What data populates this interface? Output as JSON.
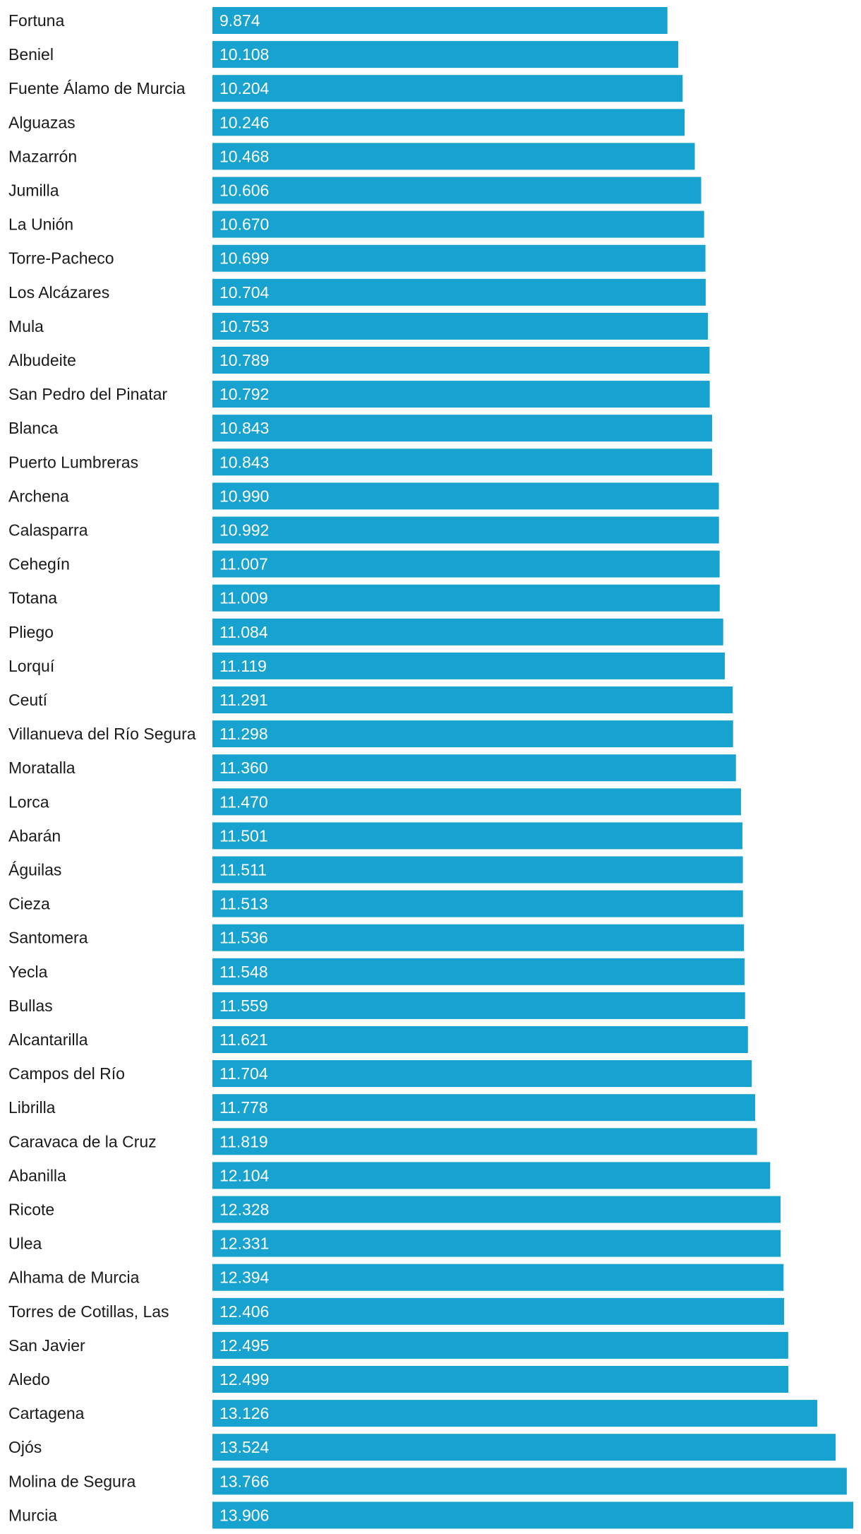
{
  "chart_data": {
    "type": "bar",
    "orientation": "horizontal",
    "title": "",
    "xlabel": "",
    "ylabel": "",
    "bar_color": "#17a2cf",
    "xlim": [
      0,
      13.906
    ],
    "categories": [
      "Fortuna",
      "Beniel",
      "Fuente Álamo de Murcia",
      "Alguazas",
      "Mazarrón",
      "Jumilla",
      "La Unión",
      "Torre-Pacheco",
      "Los Alcázares",
      "Mula",
      "Albudeite",
      "San Pedro del Pinatar",
      "Blanca",
      "Puerto Lumbreras",
      "Archena",
      "Calasparra",
      "Cehegín",
      "Totana",
      "Pliego",
      "Lorquí",
      "Ceutí",
      "Villanueva del Río Segura",
      "Moratalla",
      "Lorca",
      "Abarán",
      "Águilas",
      "Cieza",
      "Santomera",
      "Yecla",
      "Bullas",
      "Alcantarilla",
      "Campos del Río",
      "Librilla",
      "Caravaca de la Cruz",
      "Abanilla",
      "Ricote",
      "Ulea",
      "Alhama de Murcia",
      "Torres de Cotillas, Las",
      "San Javier",
      "Aledo",
      "Cartagena",
      "Ojós",
      "Molina de Segura",
      "Murcia"
    ],
    "values": [
      9.874,
      10.108,
      10.204,
      10.246,
      10.468,
      10.606,
      10.67,
      10.699,
      10.704,
      10.753,
      10.789,
      10.792,
      10.843,
      10.843,
      10.99,
      10.992,
      11.007,
      11.009,
      11.084,
      11.119,
      11.291,
      11.298,
      11.36,
      11.47,
      11.501,
      11.511,
      11.513,
      11.536,
      11.548,
      11.559,
      11.621,
      11.704,
      11.778,
      11.819,
      12.104,
      12.328,
      12.331,
      12.394,
      12.406,
      12.495,
      12.499,
      13.126,
      13.524,
      13.766,
      13.906
    ],
    "value_labels": [
      "9.874",
      "10.108",
      "10.204",
      "10.246",
      "10.468",
      "10.606",
      "10.670",
      "10.699",
      "10.704",
      "10.753",
      "10.789",
      "10.792",
      "10.843",
      "10.843",
      "10.990",
      "10.992",
      "11.007",
      "11.009",
      "11.084",
      "11.119",
      "11.291",
      "11.298",
      "11.360",
      "11.470",
      "11.501",
      "11.511",
      "11.513",
      "11.536",
      "11.548",
      "11.559",
      "11.621",
      "11.704",
      "11.778",
      "11.819",
      "12.104",
      "12.328",
      "12.331",
      "12.394",
      "12.406",
      "12.495",
      "12.499",
      "13.126",
      "13.524",
      "13.766",
      "13.906"
    ]
  }
}
